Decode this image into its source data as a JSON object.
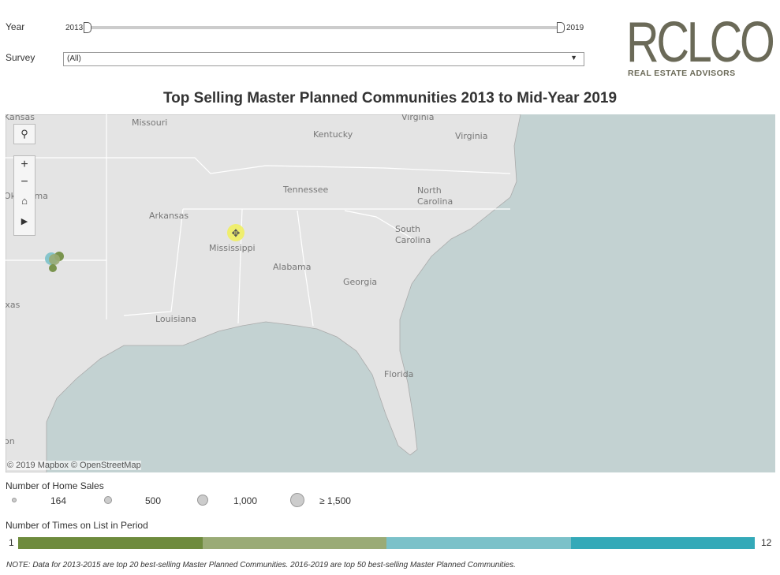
{
  "controls": {
    "year": {
      "label": "Year",
      "min": "2013",
      "max": "2019"
    },
    "survey": {
      "label": "Survey",
      "value": "(All)"
    }
  },
  "logo": {
    "name": "RCLCO",
    "tagline": "REAL ESTATE ADVISORS"
  },
  "title": "Top Selling Master Planned Communities 2013 to Mid-Year 2019",
  "map": {
    "labels": [
      "Kansas",
      "Missouri",
      "Kentucky",
      "Virginia",
      "Virginia",
      "Tennessee",
      "North",
      "Carolina",
      "Oklahoma",
      "Arkansas",
      "Mississippi",
      "Alabama",
      "South",
      "Carolina",
      "Georgia",
      "Louisiana",
      "Texas",
      "Florida",
      "on"
    ],
    "attribution": "© 2019 Mapbox © OpenStreetMap"
  },
  "size_legend": {
    "title": "Number of Home Sales",
    "items": [
      "164",
      "500",
      "1,000",
      "≥ 1,500"
    ]
  },
  "color_legend": {
    "title": "Number of Times on List in Period",
    "min": "1",
    "max": "12"
  },
  "note": "NOTE: Data for 2013-2015 are top 20 best-selling Master Planned Communities. 2016-2019 are top 50 best-selling Master Planned Communities."
}
